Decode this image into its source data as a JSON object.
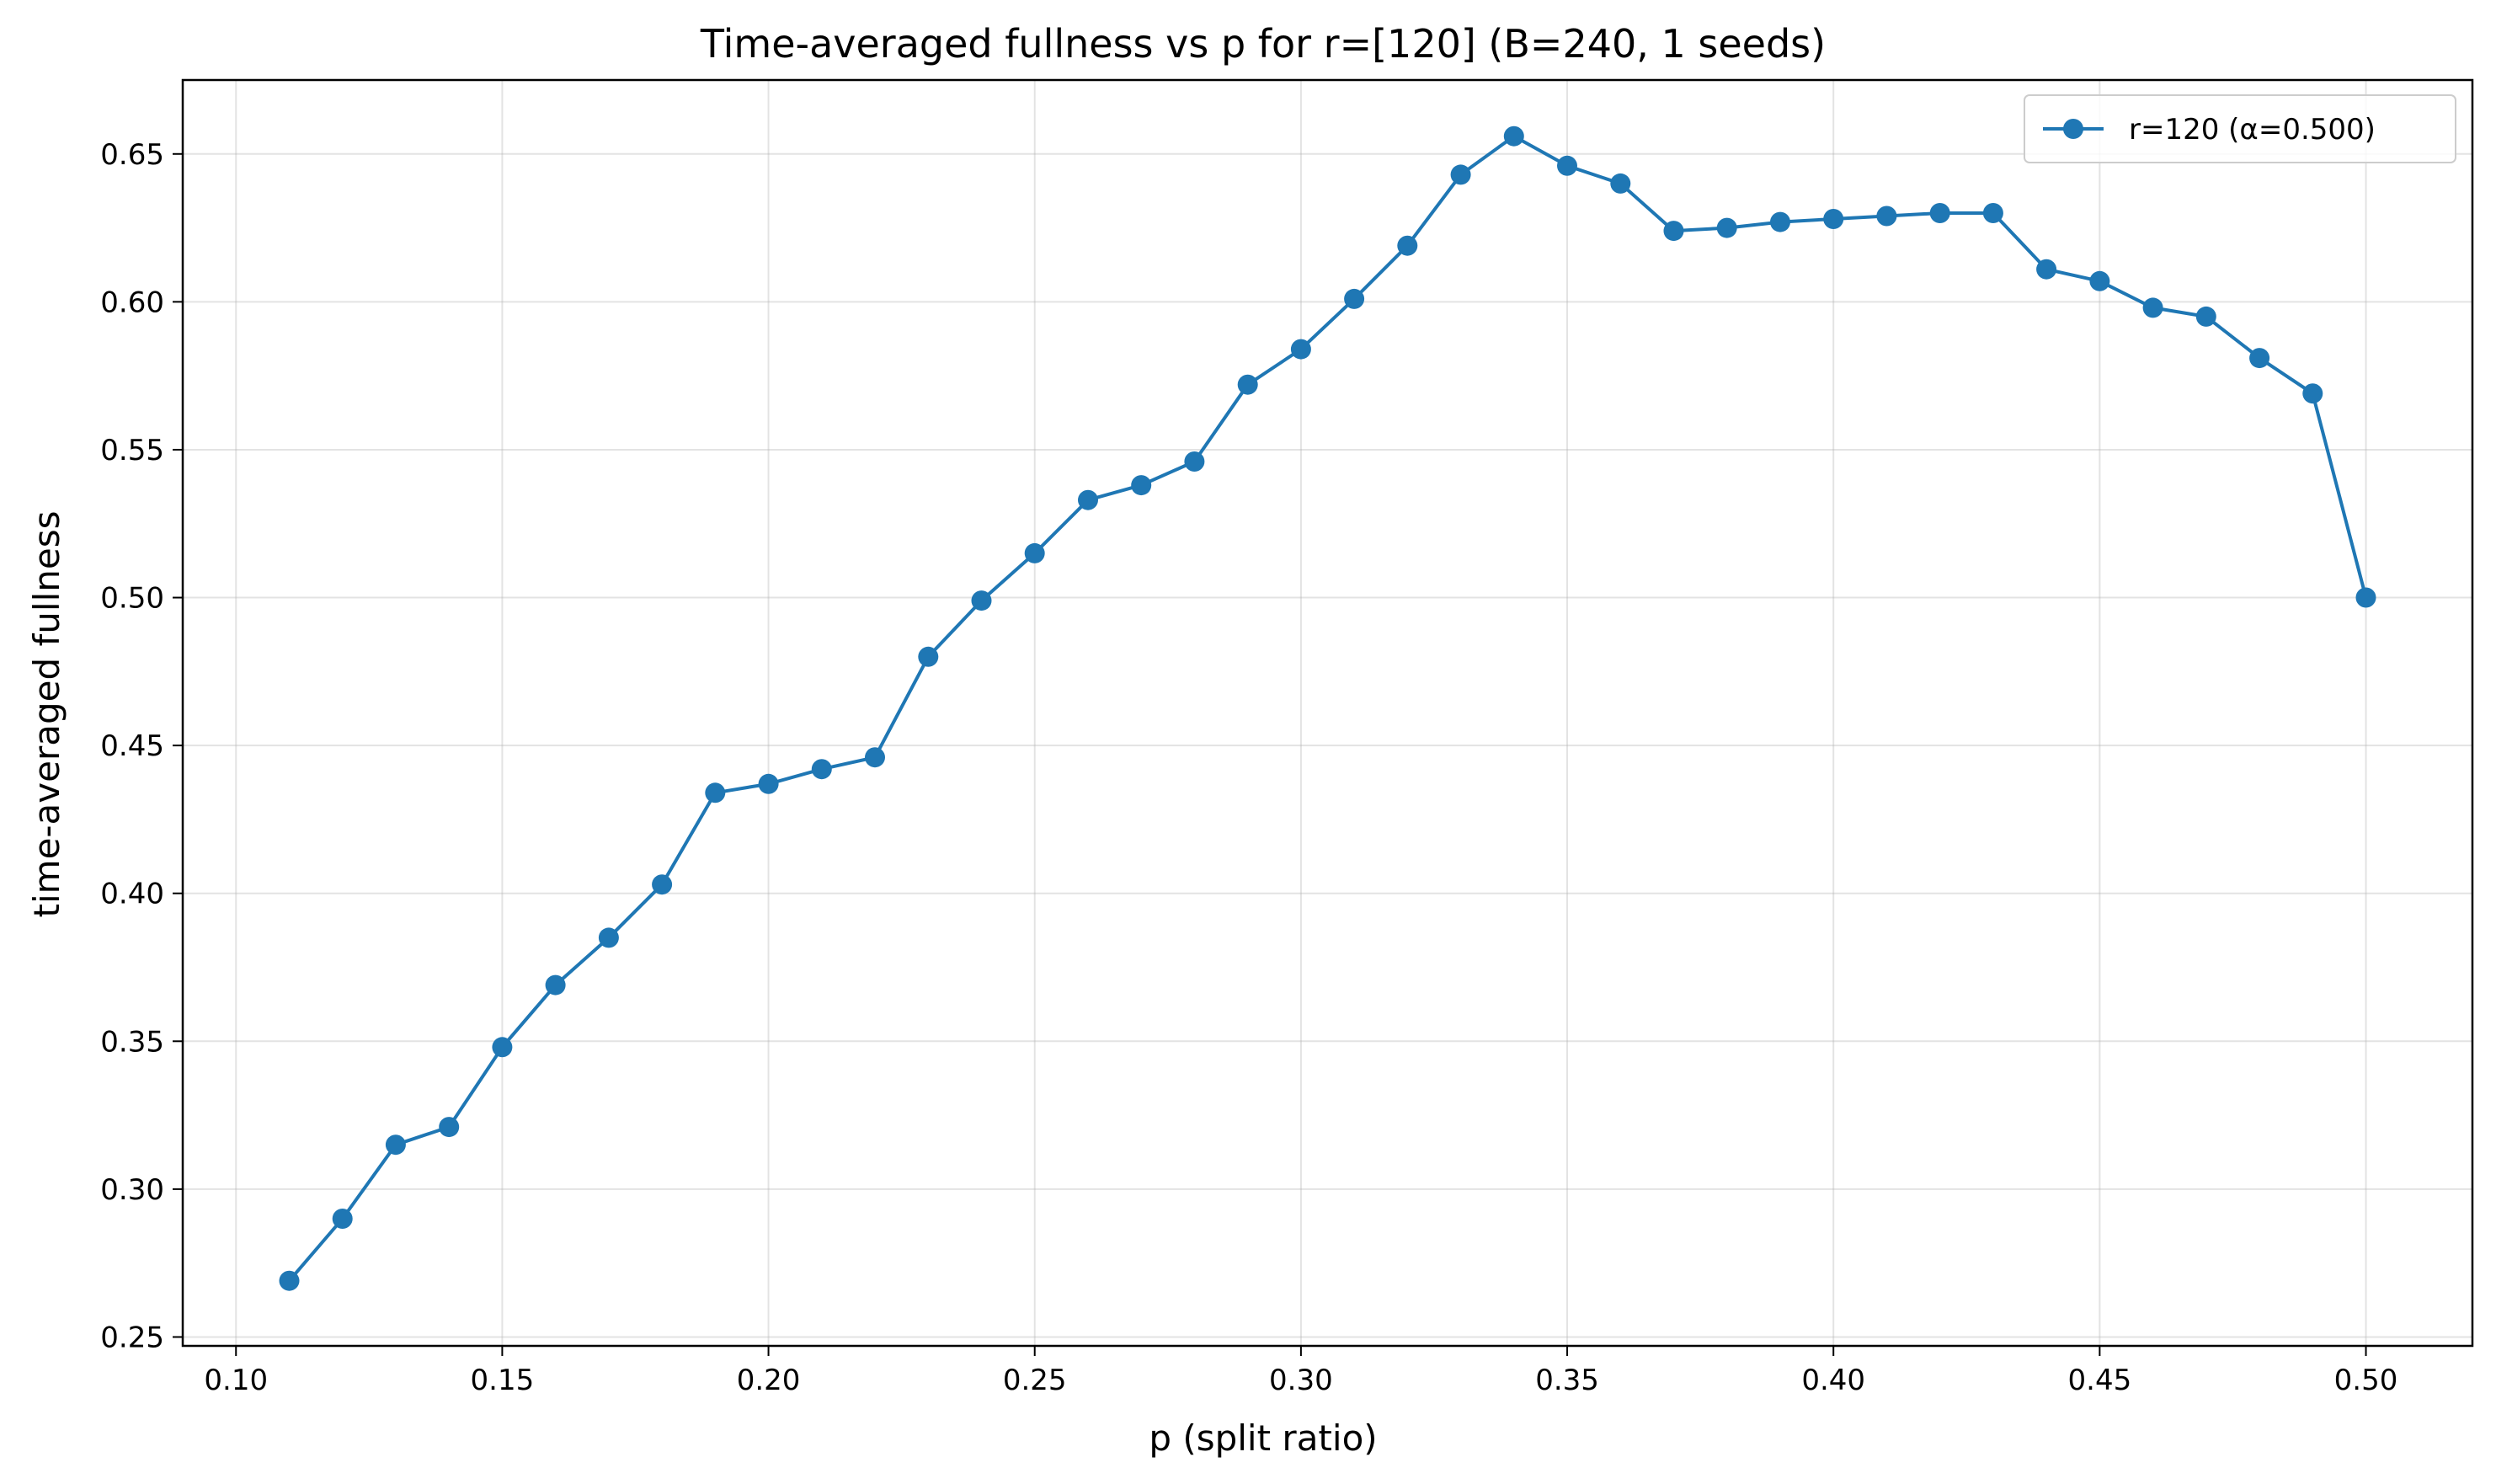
{
  "chart_data": {
    "type": "line",
    "title": "Time-averaged fullness vs p for r=[120] (B=240, 1 seeds)",
    "xlabel": "p (split ratio)",
    "ylabel": "time-averaged fullness",
    "xlim": [
      0.09,
      0.52
    ],
    "ylim": [
      0.247,
      0.675
    ],
    "xticks": [
      0.1,
      0.15,
      0.2,
      0.25,
      0.3,
      0.35,
      0.4,
      0.45,
      0.5
    ],
    "xtick_labels": [
      "0.10",
      "0.15",
      "0.20",
      "0.25",
      "0.30",
      "0.35",
      "0.40",
      "0.45",
      "0.50"
    ],
    "yticks": [
      0.25,
      0.3,
      0.35,
      0.4,
      0.45,
      0.5,
      0.55,
      0.6,
      0.65
    ],
    "ytick_labels": [
      "0.25",
      "0.30",
      "0.35",
      "0.40",
      "0.45",
      "0.50",
      "0.55",
      "0.60",
      "0.65"
    ],
    "grid": true,
    "legend_position": "top-right",
    "series": [
      {
        "name": "r=120 (α=0.500)",
        "color": "#1f77b4",
        "marker": "circle",
        "x": [
          0.11,
          0.12,
          0.13,
          0.14,
          0.15,
          0.16,
          0.17,
          0.18,
          0.19,
          0.2,
          0.21,
          0.22,
          0.23,
          0.24,
          0.25,
          0.26,
          0.27,
          0.28,
          0.29,
          0.3,
          0.31,
          0.32,
          0.33,
          0.34,
          0.35,
          0.36,
          0.37,
          0.38,
          0.39,
          0.4,
          0.41,
          0.42,
          0.43,
          0.44,
          0.45,
          0.46,
          0.47,
          0.48,
          0.49,
          0.5
        ],
        "y": [
          0.269,
          0.29,
          0.315,
          0.321,
          0.348,
          0.369,
          0.385,
          0.403,
          0.434,
          0.437,
          0.442,
          0.446,
          0.48,
          0.499,
          0.515,
          0.533,
          0.538,
          0.546,
          0.572,
          0.584,
          0.601,
          0.619,
          0.643,
          0.656,
          0.646,
          0.64,
          0.624,
          0.625,
          0.627,
          0.628,
          0.629,
          0.63,
          0.63,
          0.611,
          0.607,
          0.598,
          0.595,
          0.581,
          0.569,
          0.5
        ]
      }
    ]
  }
}
